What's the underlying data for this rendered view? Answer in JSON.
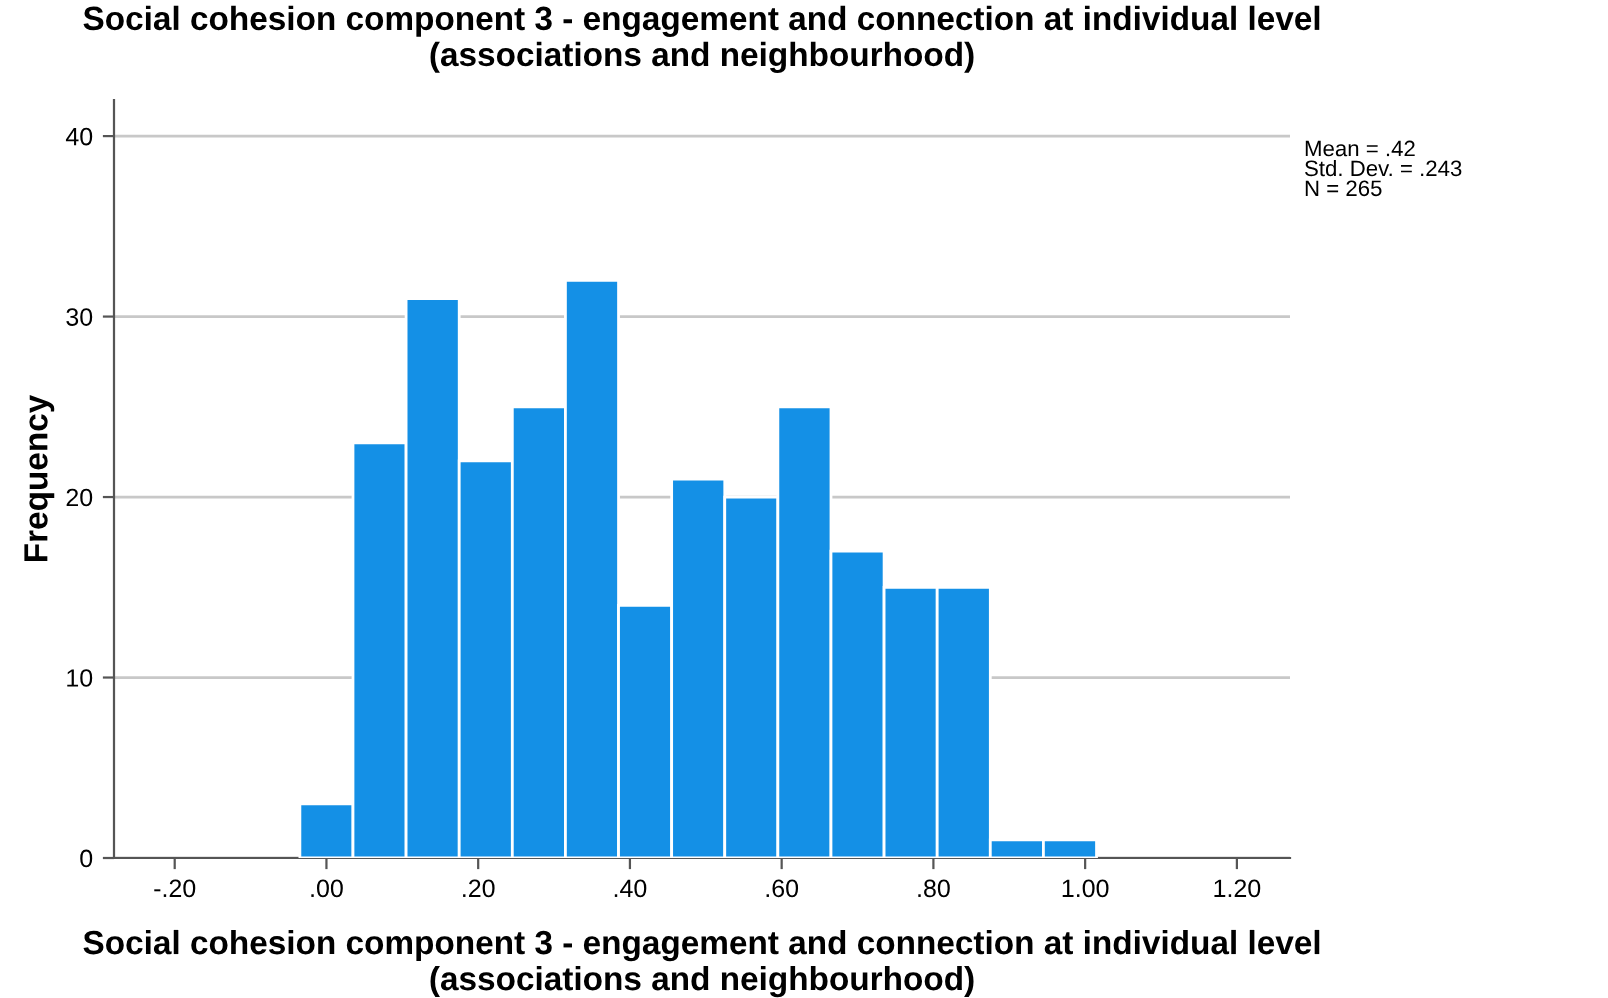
{
  "chart_data": {
    "type": "histogram",
    "title": "Social cohesion component 3 - engagement and connection at individual level (associations and neighbourhood)",
    "xlabel": "Social cohesion component 3 - engagement and connection at individual level (associations and neighbourhood)",
    "ylabel": "Frequency",
    "bins": [
      -0.035,
      0.035,
      0.105,
      0.175,
      0.245,
      0.315,
      0.385,
      0.455,
      0.525,
      0.595,
      0.665,
      0.735,
      0.805,
      0.875,
      0.945,
      1.015
    ],
    "values": [
      3,
      23,
      31,
      22,
      25,
      32,
      14,
      21,
      20,
      25,
      17,
      15,
      15,
      1,
      1
    ],
    "color": "#1490e6",
    "xlim": [
      -0.28,
      1.27
    ],
    "xticks": [
      {
        "value": -0.2,
        "label": "-.20"
      },
      {
        "value": 0,
        "label": ".00"
      },
      {
        "value": 0.2,
        "label": ".20"
      },
      {
        "value": 0.4,
        "label": ".40"
      },
      {
        "value": 0.6,
        "label": ".60"
      },
      {
        "value": 0.8,
        "label": ".80"
      },
      {
        "value": 1.0,
        "label": "1.00"
      },
      {
        "value": 1.2,
        "label": "1.20"
      }
    ],
    "ylim": [
      0,
      42
    ],
    "yticks": [
      0,
      10,
      20,
      30,
      40
    ],
    "grid": "y",
    "annotations": [
      "Mean = .42\nStd. Dev. = .243\nN = 265"
    ]
  }
}
